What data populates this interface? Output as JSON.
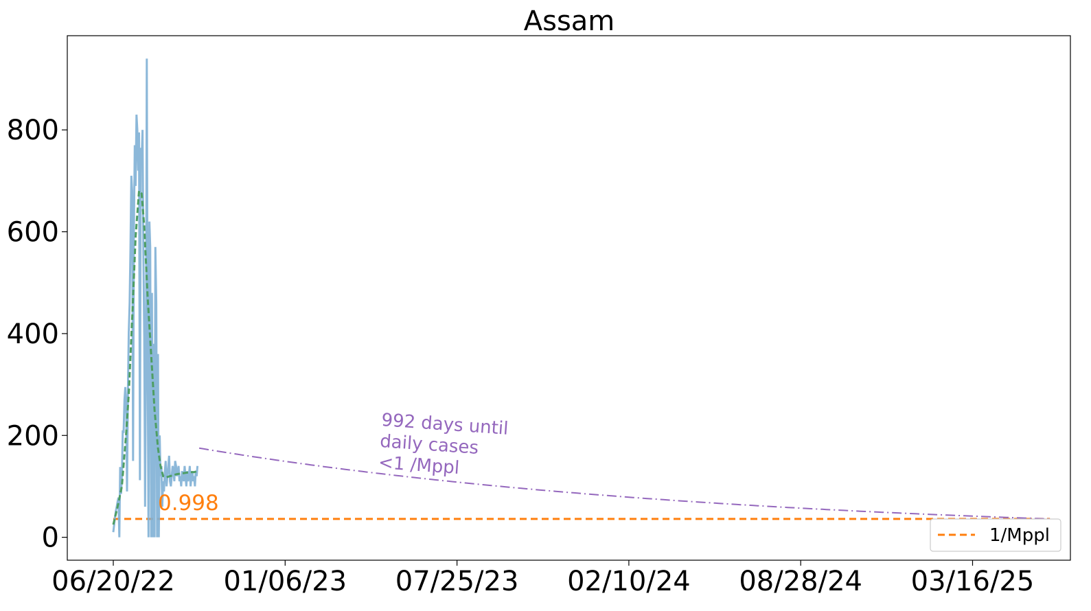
{
  "chart_data": {
    "type": "line",
    "title": "Assam",
    "xlabel": "",
    "ylabel": "",
    "x_start": "06/20/22",
    "ylim": [
      -45,
      985
    ],
    "yticks": [
      0,
      200,
      400,
      600,
      800
    ],
    "ytick_labels": [
      "0",
      "200",
      "400",
      "600",
      "800"
    ],
    "xtick_labels": [
      "06/20/22",
      "01/06/23",
      "07/25/23",
      "02/10/24",
      "08/28/24",
      "03/16/25"
    ],
    "grid": false,
    "legend_position": "lower-right",
    "legend": [
      {
        "label": "1/Mppl",
        "color": "#ff7f0e",
        "style": "dashed"
      }
    ],
    "colors": {
      "daily": "#7fb0d5",
      "smoothed": "#4e9e63",
      "projection": "#9467bd",
      "threshold": "#ff7f0e"
    },
    "series": [
      {
        "role": "daily",
        "x_days": [
          0,
          1,
          2,
          3,
          4,
          5,
          6,
          7,
          8,
          9,
          10,
          11,
          12,
          13,
          14,
          15,
          16,
          17,
          18,
          19,
          20,
          21,
          22,
          23,
          24,
          25,
          26,
          27,
          28,
          29,
          30,
          31,
          32,
          33,
          34,
          35,
          36,
          37,
          38,
          39,
          40,
          41,
          42,
          43,
          44,
          45,
          46,
          47,
          48,
          49,
          50,
          51,
          52,
          53,
          54,
          55,
          56,
          57,
          58,
          59,
          60,
          61,
          62,
          63,
          64,
          65,
          66,
          67,
          68,
          69,
          70,
          71,
          72,
          73,
          74,
          75,
          76,
          77,
          78,
          79,
          80,
          81,
          82,
          83,
          84,
          85,
          86,
          87,
          88,
          89,
          90,
          91,
          92,
          93,
          94,
          95,
          96,
          97,
          98
        ],
        "values": [
          10,
          25,
          40,
          52,
          60,
          70,
          78,
          0,
          138,
          85,
          120,
          210,
          205,
          270,
          295,
          260,
          90,
          285,
          400,
          460,
          565,
          710,
          680,
          150,
          600,
          770,
          690,
          830,
          800,
          720,
          795,
          112,
          765,
          740,
          800,
          560,
          395,
          60,
          360,
          940,
          350,
          0,
          620,
          570,
          0,
          480,
          0,
          380,
          0,
          570,
          460,
          0,
          360,
          0,
          200,
          120,
          140,
          60,
          110,
          90,
          130,
          150,
          100,
          120,
          140,
          160,
          110,
          100,
          120,
          140,
          130,
          110,
          150,
          140,
          120,
          130,
          140,
          110,
          120,
          100,
          130,
          120,
          110,
          140,
          120,
          100,
          130,
          110,
          120,
          140,
          100,
          120,
          130,
          110,
          120,
          100,
          130,
          120,
          140
        ]
      },
      {
        "role": "smoothed",
        "x_days": [
          0,
          5,
          10,
          15,
          18,
          22,
          26,
          30,
          33,
          36,
          40,
          44,
          48,
          52,
          55,
          58,
          62,
          66,
          70,
          74,
          78,
          82,
          86,
          90,
          94,
          98
        ],
        "values": [
          25,
          60,
          100,
          205,
          280,
          430,
          590,
          680,
          675,
          610,
          470,
          360,
          250,
          175,
          140,
          120,
          118,
          120,
          122,
          124,
          125,
          126,
          127,
          128,
          128,
          130
        ]
      }
    ],
    "projection": {
      "x_days": [
        100,
        1090
      ],
      "values": [
        175,
        36
      ]
    },
    "threshold": {
      "value": 36,
      "x_days": [
        0,
        1090
      ]
    },
    "annotations": {
      "days_text": [
        "992 days until",
        "daily cases",
        "<1 /Mppl"
      ],
      "fit_value": "0.998"
    }
  }
}
